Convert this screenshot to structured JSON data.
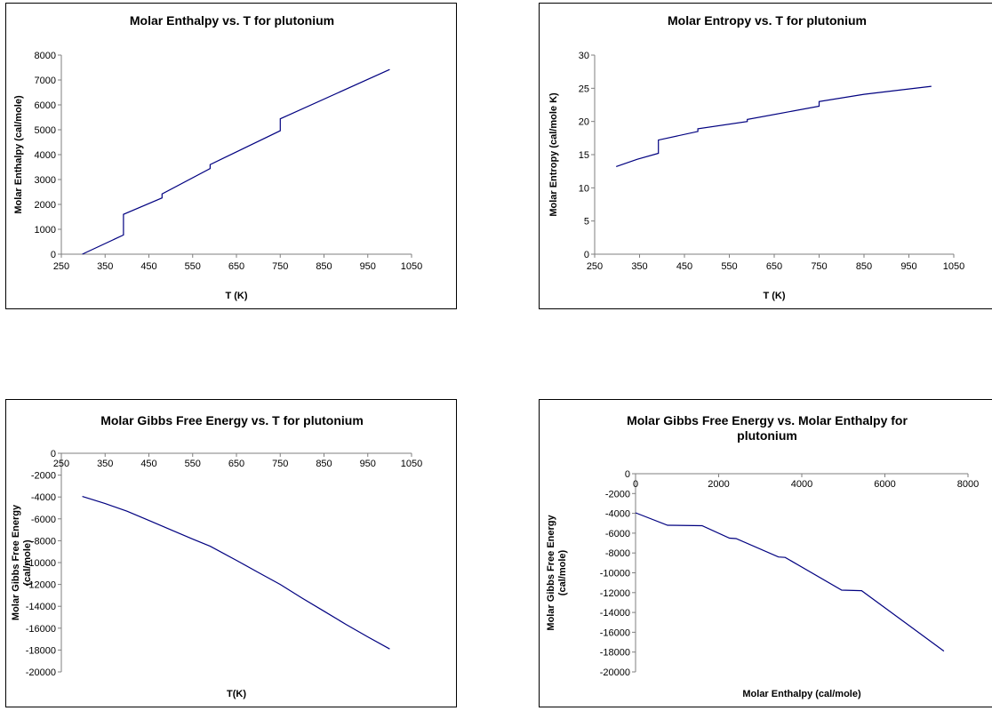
{
  "chart_data": [
    {
      "type": "line",
      "title": [
        "Molar Enthalpy vs. T for plutonium"
      ],
      "xlabel": "T (K)",
      "ylabel": [
        "Molar Enthalpy (cal/mole)"
      ],
      "xlim": [
        250,
        1050
      ],
      "ylim": [
        0,
        8000
      ],
      "xticks": [
        "250",
        "350",
        "450",
        "550",
        "650",
        "750",
        "850",
        "950",
        "1050"
      ],
      "yticks": [
        "0",
        "1000",
        "2000",
        "3000",
        "4000",
        "5000",
        "6000",
        "7000",
        "8000"
      ],
      "grid": false,
      "legend": false,
      "series": [
        {
          "color": "#000080",
          "x": [
            298,
            392,
            392,
            480,
            480,
            590,
            590,
            750,
            750,
            1000
          ],
          "y": [
            0,
            770,
            1600,
            2260,
            2420,
            3440,
            3600,
            4960,
            5440,
            7420
          ]
        }
      ]
    },
    {
      "type": "line",
      "title": [
        "Molar Entropy vs. T for plutonium"
      ],
      "xlabel": "T (K)",
      "ylabel": [
        "Molar Entropy (cal/mole K)"
      ],
      "xlim": [
        250,
        1050
      ],
      "ylim": [
        0,
        30
      ],
      "xticks": [
        "250",
        "350",
        "450",
        "550",
        "650",
        "750",
        "850",
        "950",
        "1050"
      ],
      "yticks": [
        "0",
        "5",
        "10",
        "15",
        "20",
        "25",
        "30"
      ],
      "grid": false,
      "legend": false,
      "series": [
        {
          "color": "#000080",
          "x": [
            298,
            345,
            392,
            392,
            480,
            480,
            590,
            590,
            750,
            750,
            850,
            1000
          ],
          "y": [
            13.2,
            14.3,
            15.2,
            17.2,
            18.5,
            18.9,
            20.0,
            20.3,
            22.3,
            23.0,
            24.1,
            25.3
          ]
        }
      ]
    },
    {
      "type": "line",
      "title": [
        "Molar Gibbs Free Energy vs. T for plutonium"
      ],
      "xlabel": "T(K)",
      "ylabel": [
        "Molar Gibbs Free Energy",
        "(cal/mole)"
      ],
      "xlim": [
        250,
        1050
      ],
      "ylim": [
        -20000,
        0
      ],
      "xticks": [
        "250",
        "350",
        "450",
        "550",
        "650",
        "750",
        "850",
        "950",
        "1050"
      ],
      "yticks": [
        "0",
        "-2000",
        "-4000",
        "-6000",
        "-8000",
        "-10000",
        "-12000",
        "-14000",
        "-16000",
        "-18000",
        "-20000"
      ],
      "grid": false,
      "legend": false,
      "series": [
        {
          "color": "#000080",
          "x": [
            298,
            350,
            400,
            450,
            500,
            550,
            590,
            650,
            700,
            750,
            800,
            850,
            900,
            950,
            1000
          ],
          "y": [
            -3950,
            -4600,
            -5300,
            -6150,
            -7000,
            -7850,
            -8500,
            -9800,
            -10900,
            -12000,
            -13250,
            -14450,
            -15650,
            -16800,
            -17900
          ]
        }
      ]
    },
    {
      "type": "line",
      "title": [
        "Molar Gibbs Free Energy vs. Molar Enthalpy for",
        "plutonium"
      ],
      "xlabel": "Molar Enthalpy (cal/mole)",
      "ylabel": [
        "Molar Gibbs Free Energy",
        "(cal/mole)"
      ],
      "xlim": [
        0,
        8000
      ],
      "ylim": [
        -20000,
        0
      ],
      "xticks": [
        "0",
        "2000",
        "4000",
        "6000",
        "8000"
      ],
      "yticks": [
        "0",
        "-2000",
        "-4000",
        "-6000",
        "-8000",
        "-10000",
        "-12000",
        "-14000",
        "-16000",
        "-18000",
        "-20000"
      ],
      "grid": false,
      "legend": false,
      "series": [
        {
          "color": "#000080",
          "x": [
            0,
            770,
            1600,
            2260,
            2420,
            3440,
            3600,
            4960,
            5440,
            7420
          ],
          "y": [
            -3950,
            -5200,
            -5250,
            -6500,
            -6550,
            -8400,
            -8450,
            -11750,
            -11800,
            -17900
          ]
        }
      ]
    }
  ]
}
